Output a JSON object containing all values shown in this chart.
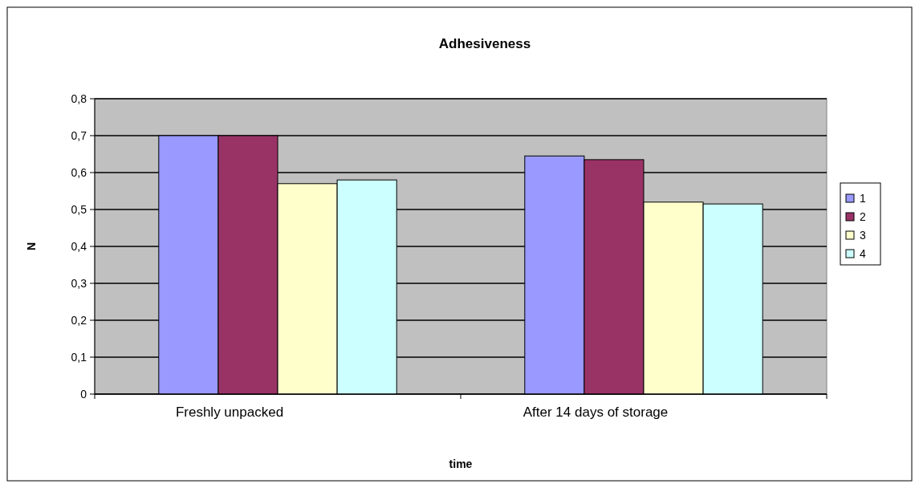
{
  "chart_data": {
    "type": "bar",
    "title": "Adhesiveness",
    "xlabel": "time",
    "ylabel": "N",
    "categories": [
      "Freshly unpacked",
      "After 14 days of storage"
    ],
    "series": [
      {
        "name": "1",
        "color": "#9999ff",
        "values": [
          0.7,
          0.645
        ]
      },
      {
        "name": "2",
        "color": "#993366",
        "values": [
          0.7,
          0.635
        ]
      },
      {
        "name": "3",
        "color": "#ffffcc",
        "values": [
          0.57,
          0.52
        ]
      },
      {
        "name": "4",
        "color": "#ccffff",
        "values": [
          0.58,
          0.515
        ]
      }
    ],
    "ylim": [
      0,
      0.8
    ],
    "yticks": [
      0,
      {
        "value": 0.1,
        "label": "0,1"
      },
      {
        "value": 0.2,
        "label": "0,2"
      },
      {
        "value": 0.3,
        "label": "0,3"
      },
      {
        "value": 0.4,
        "label": "0,4"
      },
      {
        "value": 0.5,
        "label": "0,5"
      },
      {
        "value": 0.6,
        "label": "0,6"
      },
      {
        "value": 0.7,
        "label": "0,7"
      },
      {
        "value": 0.8,
        "label": "0,8"
      }
    ],
    "grid": "y",
    "legend": "right"
  }
}
